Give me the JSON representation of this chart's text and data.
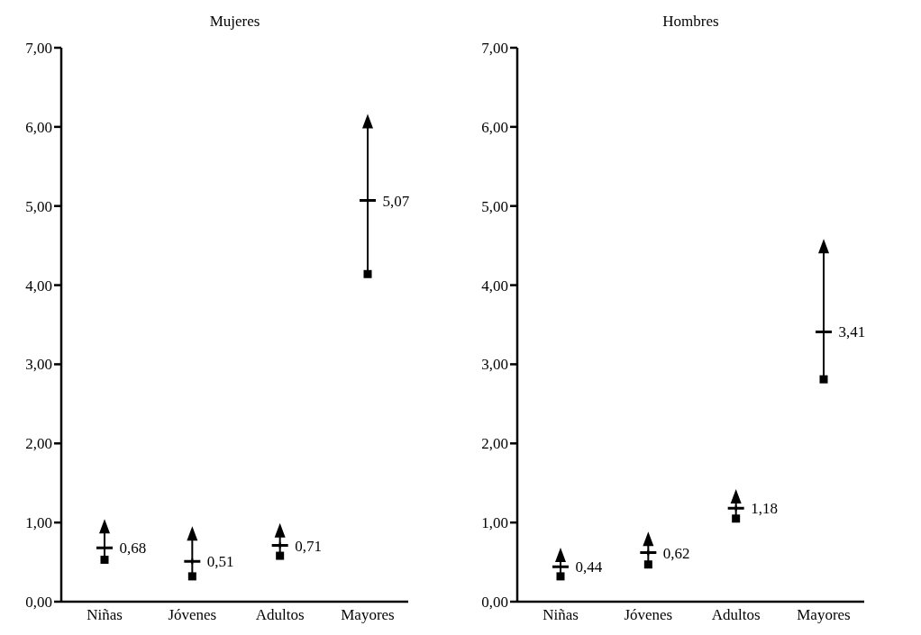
{
  "chart_data": [
    {
      "type": "scatter",
      "title": "Mujeres",
      "categories": [
        "Niñas",
        "Jóvenes",
        "Adultos",
        "Mayores"
      ],
      "series": [
        {
          "type": "line",
          "color": "#000000",
          "x": [
            "Niñas",
            "Niñas"
          ],
          "values": [
            0.53,
            0.93
          ]
        },
        {
          "type": "line",
          "color": "#000000",
          "x": [
            "Jóvenes",
            "Jóvenes"
          ],
          "values": [
            0.32,
            0.84
          ]
        },
        {
          "type": "line",
          "color": "#000000",
          "x": [
            "Adultos",
            "Adultos"
          ],
          "values": [
            0.58,
            0.88
          ]
        },
        {
          "type": "line",
          "color": "#000000",
          "x": [
            "Mayores",
            "Mayores"
          ],
          "values": [
            4.14,
            6.05
          ]
        },
        {
          "color": "#000000",
          "marker": "square",
          "values": [
            0.53,
            0.32,
            0.58,
            4.14
          ]
        },
        {
          "color": "#000000",
          "marker": "triangle",
          "values": [
            0.93,
            0.84,
            0.88,
            6.05
          ]
        },
        {
          "color": "#000000",
          "marker": "cross",
          "values": [
            0.68,
            0.51,
            0.71,
            5.07
          ],
          "value_labels": [
            "0,68",
            "0,51",
            "0,71",
            "5,07"
          ]
        }
      ],
      "ylim": [
        0,
        7
      ],
      "yticks": [
        {
          "value": 0,
          "label": "0,00"
        },
        {
          "value": 1,
          "label": "1,00"
        },
        {
          "value": 2,
          "label": "2,00"
        },
        {
          "value": 3,
          "label": "3,00"
        },
        {
          "value": 4,
          "label": "4,00"
        },
        {
          "value": 5,
          "label": "5,00"
        },
        {
          "value": 6,
          "label": "6,00"
        },
        {
          "value": 7,
          "label": "7,00"
        }
      ]
    },
    {
      "type": "scatter",
      "title": "Hombres",
      "categories": [
        "Niñas",
        "Jóvenes",
        "Adultos",
        "Mayores"
      ],
      "series": [
        {
          "type": "line",
          "color": "#000000",
          "x": [
            "Niñas",
            "Niñas"
          ],
          "values": [
            0.32,
            0.57
          ]
        },
        {
          "type": "line",
          "color": "#000000",
          "x": [
            "Jóvenes",
            "Jóvenes"
          ],
          "values": [
            0.47,
            0.77
          ]
        },
        {
          "type": "line",
          "color": "#000000",
          "x": [
            "Adultos",
            "Adultos"
          ],
          "values": [
            1.05,
            1.31
          ]
        },
        {
          "type": "line",
          "color": "#000000",
          "x": [
            "Mayores",
            "Mayores"
          ],
          "values": [
            2.81,
            4.47
          ]
        },
        {
          "color": "#000000",
          "marker": "square",
          "values": [
            0.32,
            0.47,
            1.05,
            2.81
          ]
        },
        {
          "color": "#000000",
          "marker": "triangle",
          "values": [
            0.57,
            0.77,
            1.31,
            4.47
          ]
        },
        {
          "color": "#000000",
          "marker": "cross",
          "values": [
            0.44,
            0.62,
            1.18,
            3.41
          ],
          "value_labels": [
            "0,44",
            "0,62",
            "1,18",
            "3,41"
          ]
        }
      ],
      "ylim": [
        0,
        7
      ],
      "yticks": [
        {
          "value": 0,
          "label": "0,00"
        },
        {
          "value": 1,
          "label": "1,00"
        },
        {
          "value": 2,
          "label": "2,00"
        },
        {
          "value": 3,
          "label": "3,00"
        },
        {
          "value": 4,
          "label": "4,00"
        },
        {
          "value": 5,
          "label": "5,00"
        },
        {
          "value": 6,
          "label": "6,00"
        },
        {
          "value": 7,
          "label": "7,00"
        }
      ]
    }
  ]
}
